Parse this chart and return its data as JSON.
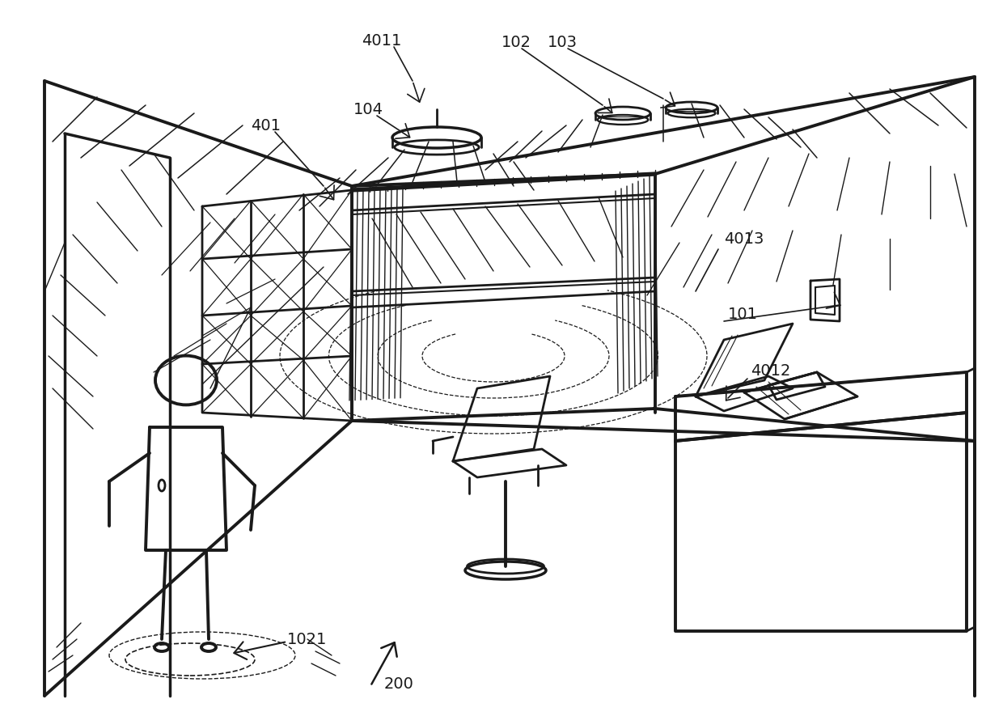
{
  "background_color": "#ffffff",
  "lc": "#1a1a1a",
  "lw": 2.0,
  "tlw": 2.8
}
